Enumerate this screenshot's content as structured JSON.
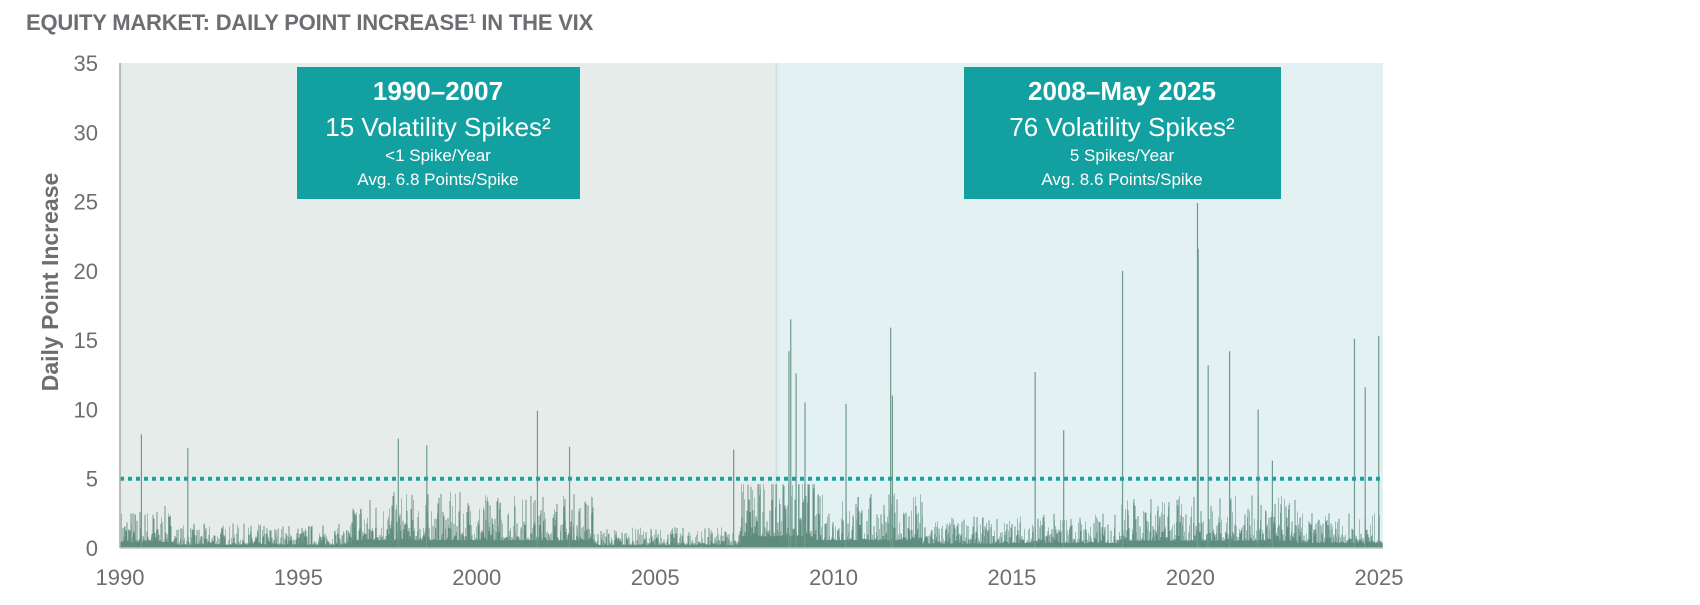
{
  "header": {
    "title_main": "EQUITY MARKET: DAILY POINT INCREASE",
    "title_sup": "1",
    "title_end": " IN THE VIX"
  },
  "colors": {
    "period1_bg": "#e6ecea",
    "period2_bg": "#e3f1f2",
    "box": "#13a0a0",
    "threshold": "#17a2a6",
    "bar_dark": "#1d5b46",
    "bar_light": "#6f9a8c",
    "text": "#6d6e71"
  },
  "chart_data": {
    "type": "bar",
    "title": "EQUITY MARKET: DAILY POINT INCREASE¹ IN THE VIX",
    "xlabel": "",
    "ylabel": "Daily Point Increase",
    "xlim": [
      1990,
      2025.4
    ],
    "ylim": [
      0,
      35
    ],
    "x_ticks": [
      "1990",
      "1995",
      "2000",
      "2005",
      "2010",
      "2015",
      "2020",
      "2025"
    ],
    "y_ticks": [
      "0",
      "5",
      "10",
      "15",
      "20",
      "25",
      "30",
      "35"
    ],
    "threshold": {
      "value": 5,
      "style": "dotted"
    },
    "period_split": 2008.4,
    "notable_spikes": [
      {
        "x": 1990.6,
        "y": 8.2
      },
      {
        "x": 1991.9,
        "y": 7.2
      },
      {
        "x": 1997.8,
        "y": 7.9
      },
      {
        "x": 1998.6,
        "y": 7.4
      },
      {
        "x": 2001.7,
        "y": 9.9
      },
      {
        "x": 2002.6,
        "y": 7.3
      },
      {
        "x": 2007.2,
        "y": 7.1
      },
      {
        "x": 2008.75,
        "y": 14.2
      },
      {
        "x": 2008.8,
        "y": 16.5
      },
      {
        "x": 2008.95,
        "y": 12.6
      },
      {
        "x": 2009.2,
        "y": 10.5
      },
      {
        "x": 2010.35,
        "y": 10.4
      },
      {
        "x": 2011.6,
        "y": 15.9
      },
      {
        "x": 2011.65,
        "y": 11.0
      },
      {
        "x": 2015.65,
        "y": 12.7
      },
      {
        "x": 2016.45,
        "y": 8.5
      },
      {
        "x": 2018.1,
        "y": 20.0
      },
      {
        "x": 2020.2,
        "y": 24.9
      },
      {
        "x": 2020.22,
        "y": 21.6
      },
      {
        "x": 2020.5,
        "y": 13.2
      },
      {
        "x": 2021.1,
        "y": 14.2
      },
      {
        "x": 2021.9,
        "y": 10.0
      },
      {
        "x": 2022.3,
        "y": 6.3
      },
      {
        "x": 2024.6,
        "y": 15.1
      },
      {
        "x": 2024.9,
        "y": 11.6
      },
      {
        "x": 2025.28,
        "y": 15.3
      }
    ],
    "annotations": [
      {
        "line1": "1990–2007",
        "line2": "15 Volatility Spikes²",
        "line3": "<1 Spike/Year",
        "line4": "Avg. 6.8 Points/Spike"
      },
      {
        "line1": "2008–May 2025",
        "line2": "76 Volatility Spikes²",
        "line3": "5 Spikes/Year",
        "line4": "Avg. 8.6 Points/Spike"
      }
    ]
  }
}
